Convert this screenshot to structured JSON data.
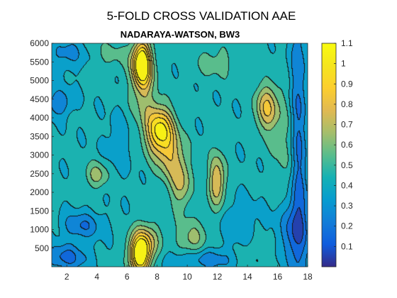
{
  "chart_data": {
    "type": "heatmap",
    "style": "filled-contour",
    "suptitle": "5-FOLD CROSS VALIDATION AAE",
    "title": "NADARAYA-WATSON, BW3",
    "xlabel": "",
    "ylabel": "",
    "xlim": [
      1,
      18
    ],
    "ylim": [
      1,
      6000
    ],
    "x_ticks": [
      2,
      4,
      6,
      8,
      10,
      12,
      14,
      16,
      18
    ],
    "y_ticks": [
      500,
      1000,
      1500,
      2000,
      2500,
      3000,
      3500,
      4000,
      4500,
      5000,
      5500,
      6000
    ],
    "colormap": "parula",
    "colorbar": {
      "range": [
        0.0,
        1.1
      ],
      "ticks": [
        0.1,
        0.2,
        0.3,
        0.4,
        0.5,
        0.6,
        0.7,
        0.8,
        0.9,
        1,
        1.1
      ],
      "tick_labels": [
        "0.1",
        "0.2",
        "0.3",
        "0.4",
        "0.5",
        "0.6",
        "0.7",
        "0.8",
        "0.9",
        "1",
        "1.1"
      ],
      "placement": "right"
    },
    "contour_levels": [
      0.1,
      0.2,
      0.3,
      0.4,
      0.5,
      0.6,
      0.7,
      0.8,
      0.9,
      1.0
    ],
    "background_level": 0.42,
    "features": [
      {
        "x": 7.0,
        "y": 5450,
        "sx": 0.45,
        "sy": 420,
        "amp": 0.72
      },
      {
        "x": 7.1,
        "y": 4700,
        "sx": 0.6,
        "sy": 700,
        "amp": 0.2
      },
      {
        "x": 8.2,
        "y": 3650,
        "sx": 0.65,
        "sy": 450,
        "amp": 0.6
      },
      {
        "x": 9.0,
        "y": 2900,
        "sx": 0.7,
        "sy": 500,
        "amp": 0.28
      },
      {
        "x": 9.6,
        "y": 2150,
        "sx": 0.45,
        "sy": 450,
        "amp": 0.25
      },
      {
        "x": 6.9,
        "y": 300,
        "sx": 0.5,
        "sy": 350,
        "amp": 0.75
      },
      {
        "x": 7.3,
        "y": 750,
        "sx": 0.7,
        "sy": 320,
        "amp": 0.25
      },
      {
        "x": 12.0,
        "y": 2300,
        "sx": 0.4,
        "sy": 500,
        "amp": 0.38
      },
      {
        "x": 15.3,
        "y": 4250,
        "sx": 0.55,
        "sy": 450,
        "amp": 0.38
      },
      {
        "x": 4.0,
        "y": 2450,
        "sx": 0.55,
        "sy": 250,
        "amp": 0.22
      },
      {
        "x": 10.3,
        "y": 700,
        "sx": 0.7,
        "sy": 380,
        "amp": 0.22
      },
      {
        "x": 14.5,
        "y": 300,
        "sx": 0.8,
        "sy": 300,
        "amp": 0.08
      },
      {
        "x": 16.6,
        "y": 3200,
        "sx": 0.7,
        "sy": 1200,
        "amp": 0.12
      },
      {
        "x": 2.0,
        "y": 5700,
        "sx": 0.9,
        "sy": 300,
        "amp": -0.15
      },
      {
        "x": 1.5,
        "y": 4400,
        "sx": 0.6,
        "sy": 250,
        "amp": -0.22
      },
      {
        "x": 3.0,
        "y": 1100,
        "sx": 0.9,
        "sy": 250,
        "amp": -0.22
      },
      {
        "x": 2.0,
        "y": 250,
        "sx": 1.0,
        "sy": 250,
        "amp": -0.25
      },
      {
        "x": 11.0,
        "y": 200,
        "sx": 1.6,
        "sy": 200,
        "amp": -0.2
      },
      {
        "x": 17.4,
        "y": 3000,
        "sx": 0.4,
        "sy": 3000,
        "amp": -0.28
      },
      {
        "x": 17.0,
        "y": 1000,
        "sx": 0.8,
        "sy": 600,
        "amp": -0.2
      },
      {
        "x": 5.5,
        "y": 3300,
        "sx": 0.6,
        "sy": 500,
        "amp": -0.1
      },
      {
        "x": 13.5,
        "y": 1200,
        "sx": 0.8,
        "sy": 400,
        "amp": -0.12
      },
      {
        "x": 12.0,
        "y": 5500,
        "sx": 1.2,
        "sy": 350,
        "amp": 0.12
      },
      {
        "x": 5.0,
        "y": 5700,
        "sx": 0.9,
        "sy": 300,
        "amp": 0.1
      }
    ]
  }
}
